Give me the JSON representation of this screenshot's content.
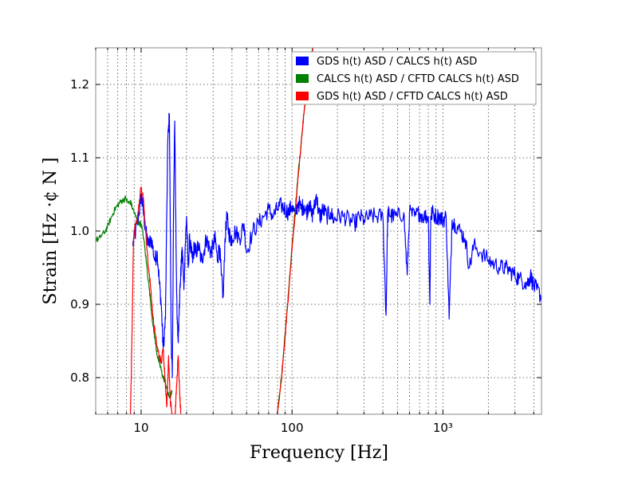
{
  "chart_data": {
    "type": "line",
    "xlabel": "Frequency [Hz]",
    "ylabel": "Strain [Hz ·¢ N ]",
    "x_scale": "log",
    "xlim": [
      5,
      4500
    ],
    "ylim": [
      0.75,
      1.25
    ],
    "grid": true,
    "legend_position": "top-right",
    "x_ticks": [
      {
        "value": 10,
        "label": "10"
      },
      {
        "value": 100,
        "label": "100"
      },
      {
        "value": 1000,
        "label": "10³"
      }
    ],
    "y_ticks": [
      0.8,
      0.9,
      1.0,
      1.1,
      1.2
    ],
    "y_tick_labels": [
      "0.8",
      "0.9",
      "1.0",
      "1.1",
      "1.2"
    ],
    "series": [
      {
        "name": "GDS h(t) ASD / CALCS h(t) ASD",
        "color": "#0000ff",
        "x": [
          8.8,
          9.2,
          9.6,
          10,
          10.3,
          10.7,
          11.2,
          11.7,
          12.3,
          12.8,
          13.2,
          13.6,
          14,
          14.5,
          15,
          15.4,
          15.8,
          16.1,
          16.4,
          16.7,
          17,
          17.3,
          17.6,
          17.9,
          18.2,
          18.5,
          18.8,
          19.2,
          19.6,
          20,
          20.5,
          21,
          21.5,
          22,
          22.5,
          23,
          24,
          25,
          26,
          27,
          28,
          29,
          30,
          31,
          32,
          33,
          34,
          35,
          36,
          37,
          38,
          39,
          40,
          42,
          45,
          48,
          50,
          55,
          60,
          65,
          70,
          75,
          80,
          85,
          90,
          95,
          100,
          105,
          110,
          115,
          120,
          125,
          130,
          135,
          140,
          145,
          150,
          155,
          160,
          170,
          180,
          190,
          200,
          220,
          240,
          260,
          280,
          300,
          330,
          360,
          400,
          420,
          430,
          440,
          460,
          500,
          550,
          580,
          600,
          650,
          700,
          750,
          800,
          820,
          830,
          850,
          900,
          950,
          1000,
          1050,
          1100,
          1150,
          1200,
          1300,
          1400,
          1500,
          1600,
          1800,
          2000,
          2200,
          2400,
          2600,
          2800,
          3000,
          3200,
          3500,
          3700,
          3800,
          4000,
          4200,
          4500
        ],
        "y": [
          0.98,
          1.0,
          1.02,
          1.05,
          1.03,
          1.0,
          0.98,
          0.99,
          0.96,
          0.97,
          0.93,
          0.9,
          0.84,
          0.88,
          1.12,
          1.16,
          0.86,
          0.8,
          1.03,
          1.15,
          1.0,
          0.88,
          0.85,
          0.9,
          0.93,
          0.96,
          0.97,
          0.92,
          0.98,
          1.02,
          0.95,
          0.99,
          0.97,
          0.96,
          0.98,
          0.97,
          0.98,
          0.96,
          0.97,
          0.99,
          0.98,
          0.97,
          0.98,
          0.99,
          0.96,
          0.98,
          0.94,
          0.91,
          0.99,
          1.02,
          1.0,
          0.99,
          0.99,
          1.0,
          0.99,
          1.01,
          0.97,
          1.0,
          1.01,
          1.02,
          1.03,
          1.02,
          1.03,
          1.035,
          1.03,
          1.025,
          1.035,
          1.02,
          1.04,
          1.03,
          1.035,
          1.025,
          1.04,
          1.02,
          1.03,
          1.05,
          1.025,
          1.02,
          1.03,
          1.02,
          1.025,
          1.015,
          1.02,
          1.02,
          1.015,
          1.01,
          1.02,
          1.015,
          1.02,
          1.02,
          1.02,
          0.885,
          1.02,
          1.025,
          1.02,
          1.02,
          1.025,
          0.94,
          1.025,
          1.02,
          1.025,
          1.02,
          1.02,
          0.9,
          1.02,
          1.025,
          1.02,
          1.02,
          1.015,
          1.02,
          0.88,
          1.015,
          1.01,
          1.0,
          0.99,
          0.95,
          0.98,
          0.97,
          0.96,
          0.955,
          0.95,
          0.95,
          0.945,
          0.94,
          0.935,
          0.93,
          0.93,
          0.94,
          0.925,
          0.92,
          0.91
        ],
        "baseline_noise": 0.012
      },
      {
        "name": "CALCS h(t) ASD / CFTD CALCS h(t) ASD",
        "color": "#008000",
        "x": [
          5,
          5.2,
          5.5,
          5.8,
          6.1,
          6.4,
          6.7,
          7,
          7.3,
          7.6,
          7.9,
          8.2,
          8.5,
          8.8,
          9.2,
          9.6,
          10,
          10.4,
          10.8,
          11.2,
          11.6,
          12,
          12.4,
          12.8,
          13.2,
          13.6,
          14,
          14.4,
          14.8,
          15.2,
          15.6,
          16
        ],
        "y": [
          0.99,
          0.988,
          0.995,
          1.0,
          1.01,
          1.02,
          1.03,
          1.035,
          1.04,
          1.042,
          1.045,
          1.038,
          1.04,
          1.03,
          1.02,
          1.01,
          1.01,
          0.99,
          0.96,
          0.93,
          0.9,
          0.87,
          0.85,
          0.83,
          0.82,
          0.81,
          0.8,
          0.795,
          0.785,
          0.775,
          0.775,
          0.78
        ],
        "baseline_noise": 0.004
      },
      {
        "name": "GDS h(t) ASD / CFTD CALCS h(t) ASD",
        "color": "#ff0000",
        "x": [
          8.5,
          8.7,
          8.9,
          9.2,
          9.6,
          10,
          10.4,
          10.8,
          11.2,
          11.6,
          12,
          12.4,
          12.8,
          13.2,
          13.6,
          14,
          14.4,
          14.8,
          15.2,
          15.6,
          16,
          16.4,
          16.8,
          17.2,
          17.6,
          18,
          18.3
        ],
        "y": [
          0.75,
          0.86,
          0.99,
          1.01,
          1.03,
          1.06,
          1.04,
          0.99,
          0.95,
          0.92,
          0.88,
          0.86,
          0.84,
          0.83,
          0.82,
          0.84,
          0.8,
          0.76,
          0.83,
          0.77,
          0.75,
          0.75,
          0.75,
          0.79,
          0.83,
          0.78,
          0.75
        ],
        "baseline_noise": 0.005
      },
      {
        "name": "",
        "color": "#008000",
        "x": [
          80,
          85,
          90,
          95,
          100,
          105,
          110,
          115,
          120,
          125,
          130,
          135,
          140
        ],
        "y": [
          0.75,
          0.8,
          0.86,
          0.92,
          0.98,
          1.03,
          1.08,
          1.12,
          1.16,
          1.19,
          1.22,
          1.24,
          1.26
        ],
        "baseline_noise": 0.004
      },
      {
        "name": "",
        "color": "#ff0000",
        "x": [
          80,
          85,
          90,
          95,
          100,
          105,
          110,
          115,
          120,
          125,
          130,
          135,
          140
        ],
        "y": [
          0.75,
          0.795,
          0.855,
          0.915,
          0.975,
          1.025,
          1.075,
          1.12,
          1.16,
          1.195,
          1.225,
          1.245,
          1.27
        ],
        "baseline_noise": 0.004
      }
    ],
    "legend": [
      {
        "label": "GDS h(t) ASD / CALCS h(t) ASD",
        "color": "#0000ff"
      },
      {
        "label": "CALCS h(t) ASD / CFTD CALCS h(t) ASD",
        "color": "#008000"
      },
      {
        "label": "GDS h(t) ASD / CFTD CALCS h(t) ASD",
        "color": "#ff0000"
      }
    ]
  }
}
